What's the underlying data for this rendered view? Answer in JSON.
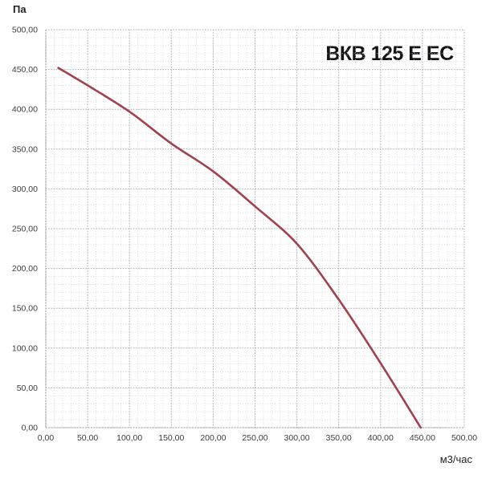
{
  "page": {
    "background": "#ffffff"
  },
  "chart_data": {
    "type": "line",
    "title": "ВКВ 125 Е ЕС",
    "xlabel": "м3/час",
    "ylabel": "Па",
    "xlim": [
      0,
      500
    ],
    "ylim": [
      0,
      500
    ],
    "x_tick_step": 50,
    "y_tick_step": 50,
    "minor_grid_step": 10,
    "grid": true,
    "legend": "none",
    "x_tick_labels": [
      "0,00",
      "50,00",
      "100,00",
      "150,00",
      "200,00",
      "250,00",
      "300,00",
      "350,00",
      "400,00",
      "450,00",
      "500,00"
    ],
    "y_tick_labels": [
      "0,00",
      "50,00",
      "100,00",
      "150,00",
      "200,00",
      "250,00",
      "300,00",
      "350,00",
      "400,00",
      "450,00",
      "500,00"
    ],
    "series": [
      {
        "name": "ВКВ 125 Е ЕС",
        "color": "#a2414d",
        "points": [
          [
            15,
            452
          ],
          [
            50,
            430
          ],
          [
            100,
            397
          ],
          [
            150,
            357
          ],
          [
            200,
            322
          ],
          [
            250,
            278
          ],
          [
            300,
            231
          ],
          [
            350,
            161
          ],
          [
            400,
            81
          ],
          [
            448,
            0
          ]
        ]
      }
    ],
    "colors": {
      "grid_minor": "#ced3da",
      "grid_major": "#aab0bc",
      "axis_edge": "#9aa0aa",
      "tick_text": "#3c3c3c",
      "title_text": "#141414"
    }
  }
}
